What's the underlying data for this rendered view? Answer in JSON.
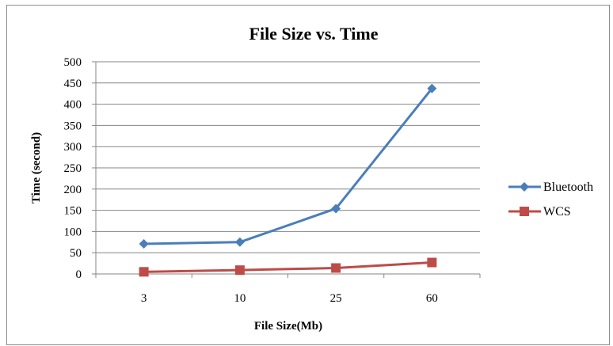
{
  "chart_data": {
    "type": "line",
    "title": "File Size vs. Time",
    "xlabel": "File Size(Mb)",
    "ylabel": "Time (second)",
    "categories": [
      "3",
      "10",
      "25",
      "60"
    ],
    "ylim": [
      0,
      500
    ],
    "yticks": [
      "0",
      "50",
      "100",
      "150",
      "200",
      "250",
      "300",
      "350",
      "400",
      "450",
      "500"
    ],
    "grid": "horizontal",
    "legend_position": "right",
    "series": [
      {
        "name": "Bluetooth",
        "values": [
          71,
          75,
          154,
          437
        ],
        "color": "#4a7ebb",
        "marker": "diamond"
      },
      {
        "name": "WCS",
        "values": [
          5,
          9,
          14,
          27
        ],
        "color": "#be4b48",
        "marker": "square"
      }
    ]
  }
}
